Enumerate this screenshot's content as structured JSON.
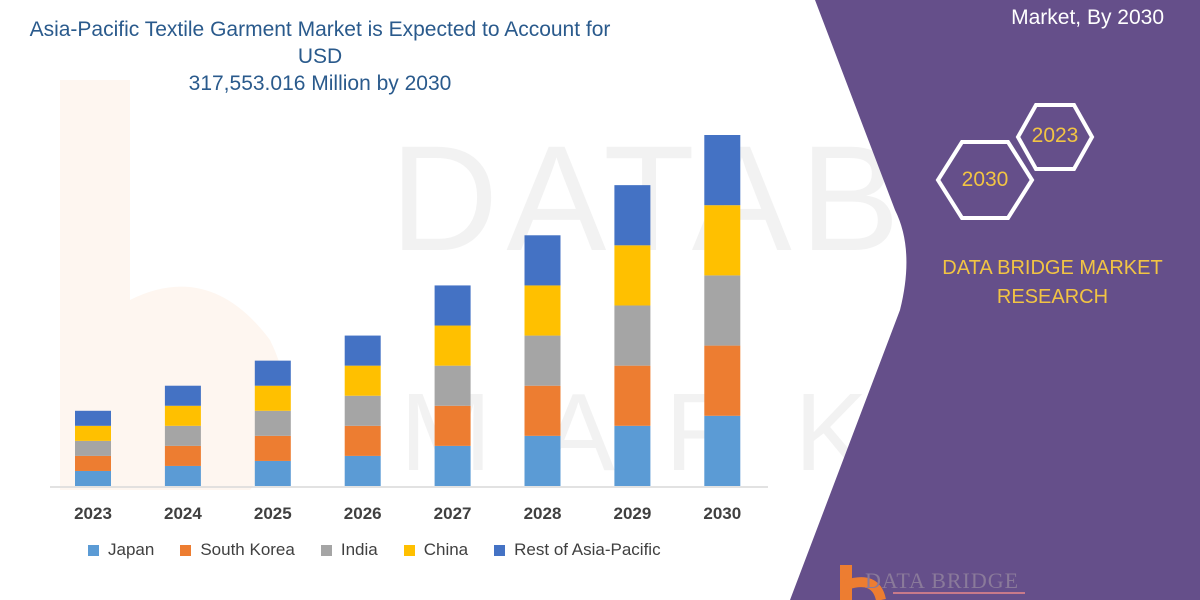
{
  "title": "Asia-Pacific Textile Garment Market is Expected to Account for USD 317,553.016 Million by 2030",
  "title_lines": [
    "Asia-Pacific Textile Garment Market is Expected to Account for USD",
    "317,553.016 Million by 2030"
  ],
  "side_panel": {
    "heading": "Market, By 2030",
    "hex_years": [
      "2023",
      "2030"
    ],
    "brand_lines": [
      "DATA BRIDGE MARKET",
      "RESEARCH"
    ],
    "logo_text": "DATA BRIDGE",
    "panel_color": "#654f8a",
    "brand_color": "#f2c443"
  },
  "chart_data": {
    "type": "bar",
    "stacked": true,
    "categories": [
      "2023",
      "2024",
      "2025",
      "2026",
      "2027",
      "2028",
      "2029",
      "2030"
    ],
    "series": [
      {
        "name": "Japan",
        "color": "#5b9bd5",
        "values": [
          15,
          20,
          25,
          30,
          40,
          50,
          60,
          70
        ]
      },
      {
        "name": "South Korea",
        "color": "#ed7d31",
        "values": [
          15,
          20,
          25,
          30,
          40,
          50,
          60,
          70
        ]
      },
      {
        "name": "India",
        "color": "#a5a5a5",
        "values": [
          15,
          20,
          25,
          30,
          40,
          50,
          60,
          70
        ]
      },
      {
        "name": "China",
        "color": "#ffc000",
        "values": [
          15,
          20,
          25,
          30,
          40,
          50,
          60,
          70
        ]
      },
      {
        "name": "Rest of Asia-Pacific",
        "color": "#4472c4",
        "values": [
          15,
          20,
          25,
          30,
          40,
          50,
          60,
          70
        ]
      }
    ],
    "xlabel": "",
    "ylabel": "",
    "y_axis_shown": false,
    "ylim": [
      0,
      360
    ],
    "grid": false,
    "legend": "bottom"
  }
}
